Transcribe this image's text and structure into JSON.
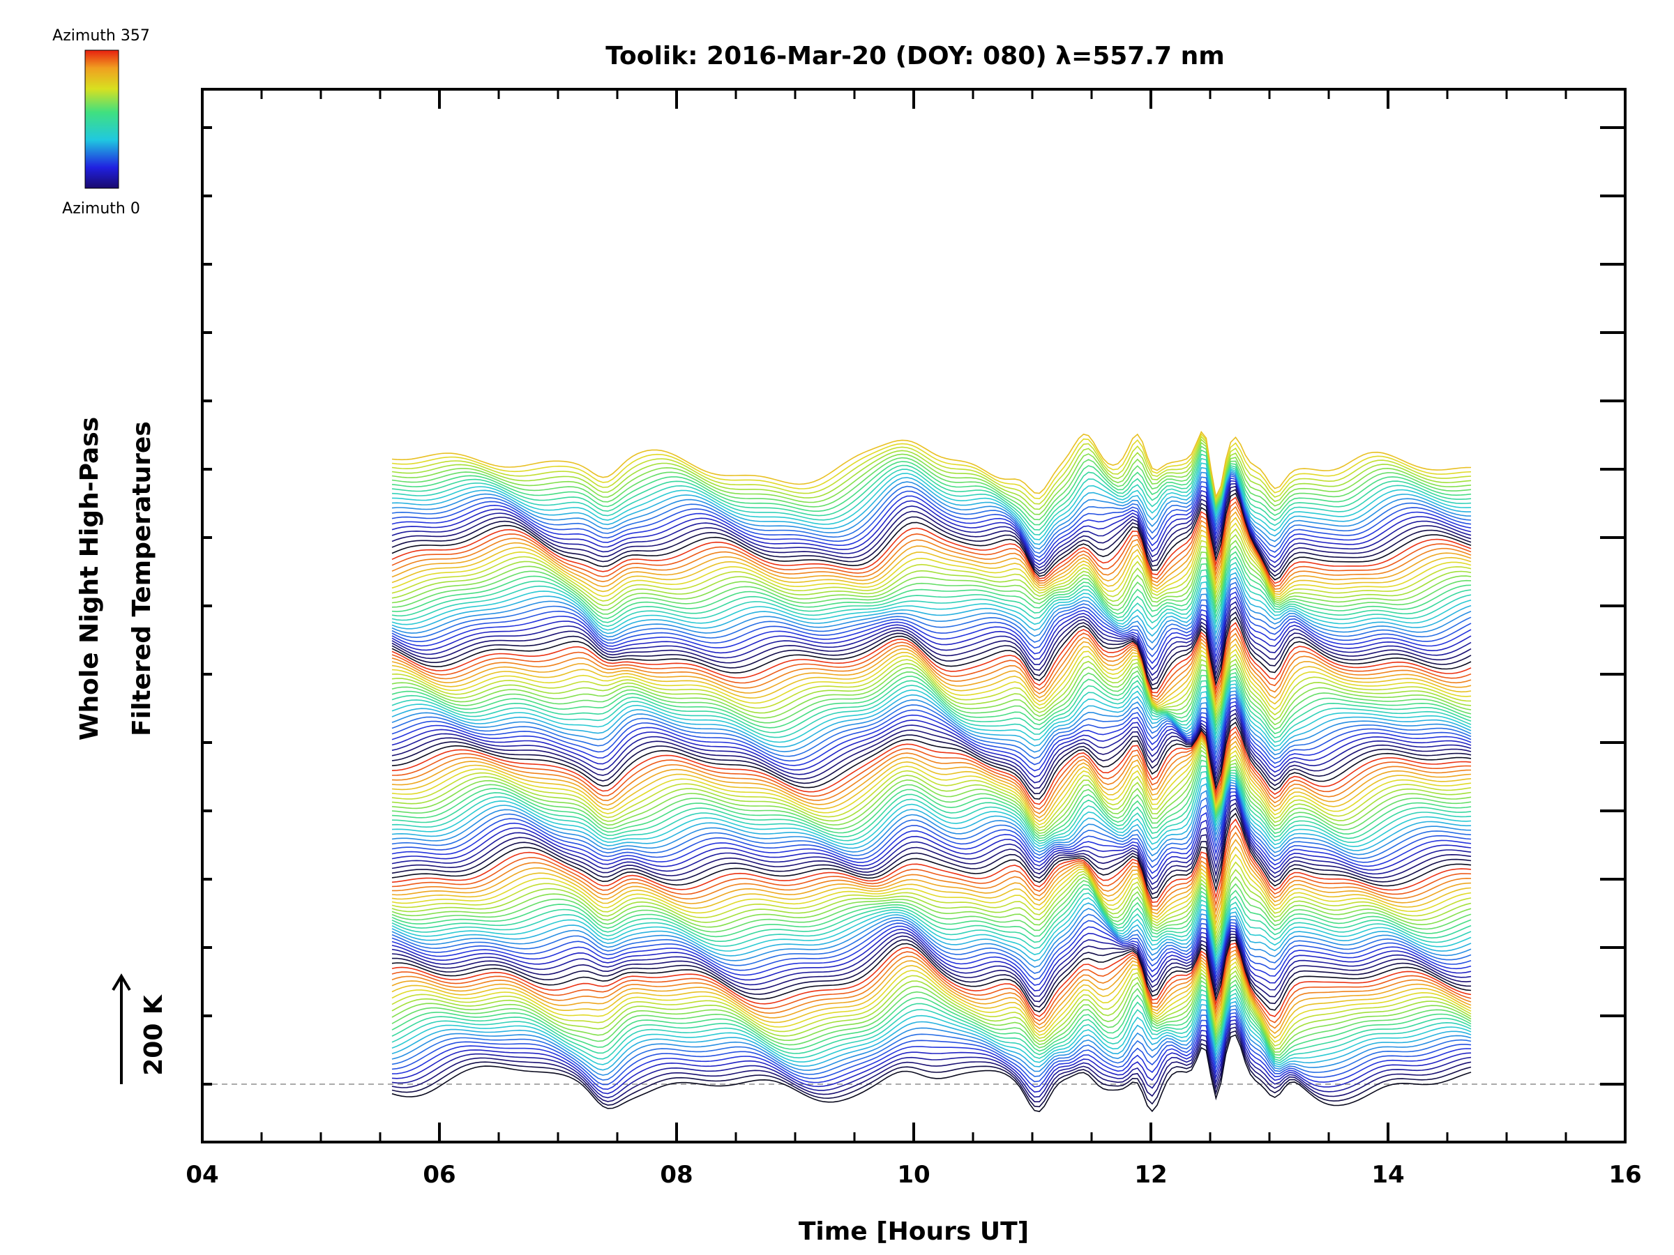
{
  "chart_data": {
    "type": "line",
    "title": "Toolik: 2016-Mar-20 (DOY: 080) λ=557.7 nm",
    "xlabel": "Time [Hours UT]",
    "ylabel_line1": "Whole Night High-Pass",
    "ylabel_line2": "Filtered Temperatures",
    "xlim": [
      4,
      16
    ],
    "xticks": [
      "04",
      "06",
      "08",
      "10",
      "12",
      "14",
      "16"
    ],
    "x_range_data": [
      5.6,
      14.7
    ],
    "scale_bar_label": "200 K",
    "scale_bar_value_K": 200,
    "colorbar_top_label": "Azimuth 357",
    "colorbar_bottom_label": "Azimuth 0",
    "azimuth_range": [
      0,
      357
    ],
    "num_series": 140,
    "series_description": "Stacked high-pass filtered temperature traces, one per azimuth, offset vertically; color encodes azimuth",
    "colors": {
      "baseline": "#aaaaaa",
      "axis": "#000000"
    }
  }
}
